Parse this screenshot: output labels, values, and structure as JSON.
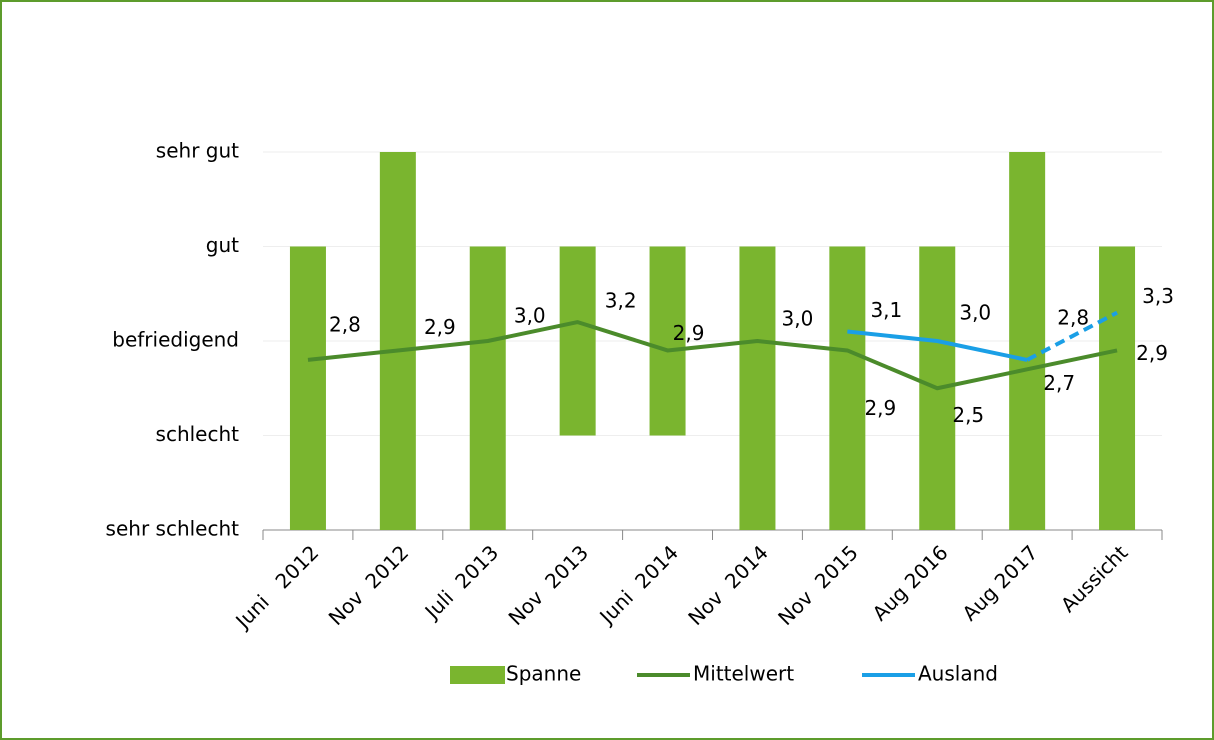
{
  "chart_data": {
    "type": "range-bar-line",
    "categories": [
      "Juni   2012",
      "Nov  2012",
      "Juli  2013",
      "Nov  2013",
      "Juni  2014",
      "Nov  2014",
      "Nov  2015",
      "Aug 2016",
      "Aug 2017",
      "Aussicht"
    ],
    "ylim": [
      1,
      5
    ],
    "yticks": [
      {
        "value": 1,
        "label": "sehr schlecht"
      },
      {
        "value": 2,
        "label": "schlecht"
      },
      {
        "value": 3,
        "label": "befriedigend"
      },
      {
        "value": 4,
        "label": "gut"
      },
      {
        "value": 5,
        "label": "sehr gut"
      }
    ],
    "grid": true,
    "legend": "bottom",
    "series": [
      {
        "name": "Spanne",
        "kind": "range",
        "color": "#7ab52f",
        "low": [
          1,
          1,
          1,
          2,
          2,
          1,
          1,
          1,
          1,
          1
        ],
        "high": [
          4,
          5,
          4,
          4,
          4,
          4,
          4,
          4,
          5,
          4
        ]
      },
      {
        "name": "Mittelwert",
        "kind": "line",
        "color": "#4b8b2b",
        "values": [
          2.8,
          2.9,
          3.0,
          3.2,
          2.9,
          3.0,
          2.9,
          2.5,
          2.7,
          2.9
        ],
        "value_labels": [
          "2,8",
          "2,9",
          "3,0",
          "3,2",
          "2,9",
          "3,0",
          "2,9",
          "2,5",
          "2,7",
          "2,9"
        ]
      },
      {
        "name": "Ausland",
        "kind": "line",
        "color": "#1a9fe6",
        "dashed_from": 8,
        "values": [
          null,
          null,
          null,
          null,
          null,
          null,
          3.1,
          3.0,
          2.8,
          3.3
        ],
        "value_labels": [
          null,
          null,
          null,
          null,
          null,
          null,
          "3,1",
          "3,0",
          "2,8",
          "3,3"
        ]
      }
    ]
  }
}
